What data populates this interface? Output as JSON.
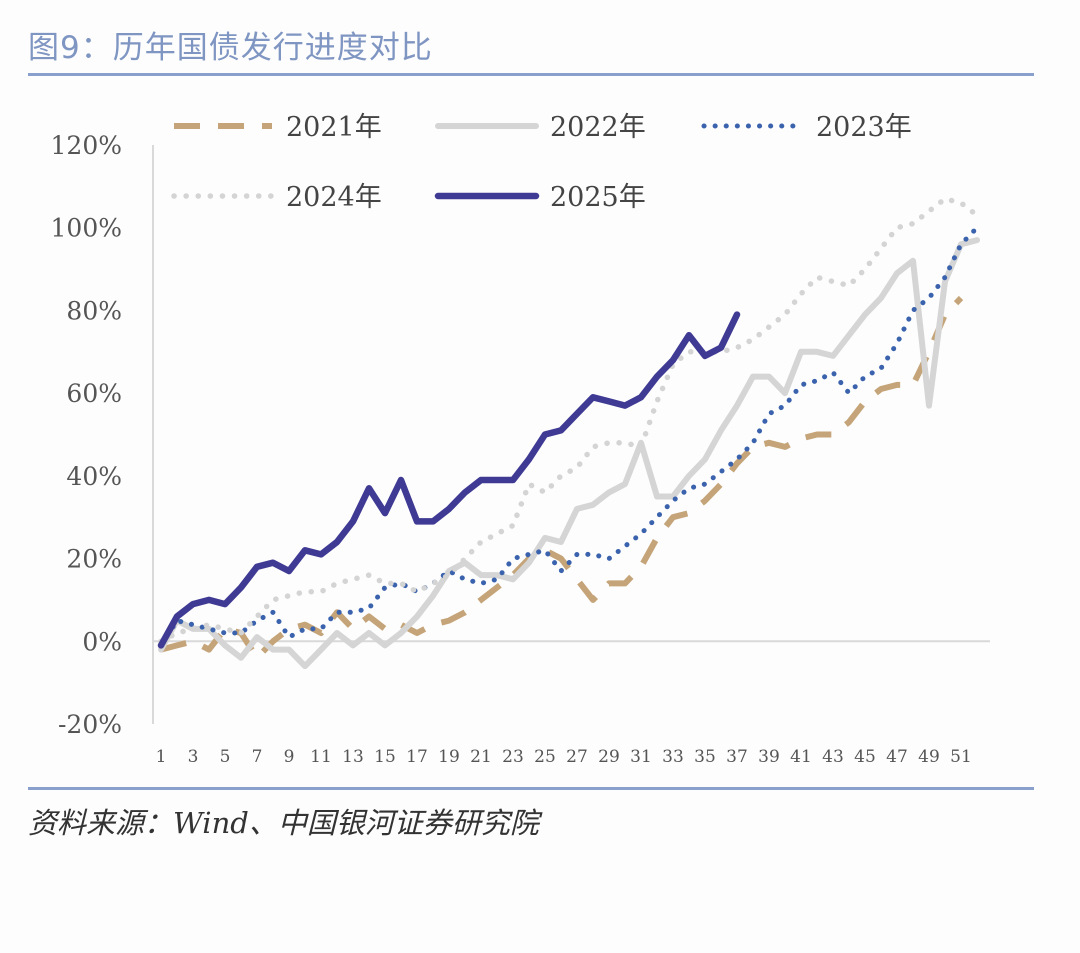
{
  "title": "图9：历年国债发行进度对比",
  "source": "资料来源：Wind、中国银河证券研究院",
  "chart_data": {
    "type": "line",
    "title": "图9：历年国债发行进度对比",
    "xlabel": "",
    "ylabel": "",
    "ylim": [
      -20,
      120
    ],
    "y_ticks": [
      -20,
      0,
      20,
      40,
      60,
      80,
      100,
      120
    ],
    "y_tick_labels": [
      "-20%",
      "0%",
      "20%",
      "40%",
      "60%",
      "80%",
      "100%",
      "120%"
    ],
    "x_range": [
      1,
      52
    ],
    "x_ticks": [
      1,
      3,
      5,
      7,
      9,
      11,
      13,
      15,
      17,
      19,
      21,
      23,
      25,
      27,
      29,
      31,
      33,
      35,
      37,
      39,
      41,
      43,
      45,
      47,
      49,
      51
    ],
    "legend_position": "top",
    "series": [
      {
        "name": "2021年",
        "color": "#c4a478",
        "style": "dashed",
        "x": [
          1,
          2,
          3,
          4,
          5,
          6,
          7,
          8,
          9,
          10,
          11,
          12,
          13,
          14,
          15,
          16,
          17,
          18,
          19,
          20,
          21,
          22,
          23,
          24,
          25,
          26,
          27,
          28,
          29,
          30,
          31,
          32,
          33,
          34,
          35,
          36,
          37,
          38,
          39,
          40,
          41,
          42,
          43,
          44,
          45,
          46,
          47,
          48,
          49,
          50,
          51
        ],
        "values": [
          -2,
          -1,
          0,
          -2,
          3,
          2,
          -4,
          0,
          3,
          4,
          2,
          7,
          3,
          6,
          3,
          4,
          2,
          4,
          5,
          7,
          10,
          13,
          16,
          20,
          22,
          20,
          15,
          10,
          14,
          14,
          18,
          25,
          30,
          31,
          34,
          38,
          43,
          47,
          48,
          47,
          49,
          50,
          50,
          53,
          58,
          61,
          62,
          62,
          70,
          79,
          83
        ]
      },
      {
        "name": "2022年",
        "color": "#d5d5d5",
        "style": "solid",
        "x": [
          1,
          2,
          3,
          4,
          5,
          6,
          7,
          8,
          9,
          10,
          11,
          12,
          13,
          14,
          15,
          16,
          17,
          18,
          19,
          20,
          21,
          22,
          23,
          24,
          25,
          26,
          27,
          28,
          29,
          30,
          31,
          32,
          33,
          34,
          35,
          36,
          37,
          38,
          39,
          40,
          41,
          42,
          43,
          44,
          45,
          46,
          47,
          48,
          49,
          50,
          51,
          52
        ],
        "values": [
          -2,
          5,
          3,
          3,
          -1,
          -4,
          1,
          -2,
          -2,
          -6,
          -2,
          2,
          -1,
          2,
          -1,
          2,
          6,
          11,
          17,
          19,
          16,
          16,
          15,
          19,
          25,
          24,
          32,
          33,
          36,
          38,
          48,
          35,
          35,
          40,
          44,
          51,
          57,
          64,
          64,
          60,
          70,
          70,
          69,
          74,
          79,
          83,
          89,
          92,
          57,
          87,
          96,
          97
        ]
      },
      {
        "name": "2023年",
        "color": "#3b63ad",
        "style": "dotted",
        "x": [
          1,
          2,
          3,
          4,
          5,
          6,
          7,
          8,
          9,
          10,
          11,
          12,
          13,
          14,
          15,
          16,
          17,
          18,
          19,
          20,
          21,
          22,
          23,
          24,
          25,
          26,
          27,
          28,
          29,
          30,
          31,
          32,
          33,
          34,
          35,
          36,
          37,
          38,
          39,
          40,
          41,
          42,
          43,
          44,
          45,
          46,
          47,
          48,
          49,
          50,
          51,
          52
        ],
        "values": [
          -1,
          5,
          4,
          3,
          2,
          2,
          5,
          7,
          1,
          3,
          3,
          7,
          7,
          8,
          13,
          14,
          12,
          14,
          17,
          15,
          14,
          15,
          20,
          21,
          22,
          17,
          21,
          21,
          20,
          23,
          26,
          30,
          34,
          37,
          38,
          41,
          44,
          48,
          55,
          57,
          62,
          63,
          65,
          60,
          64,
          66,
          72,
          80,
          83,
          88,
          96,
          100
        ]
      },
      {
        "name": "2024年",
        "color": "#d4d4d4",
        "style": "dotted",
        "x": [
          1,
          2,
          3,
          4,
          5,
          6,
          7,
          8,
          9,
          10,
          11,
          12,
          13,
          14,
          15,
          16,
          17,
          18,
          19,
          20,
          21,
          22,
          23,
          24,
          25,
          26,
          27,
          28,
          29,
          30,
          31,
          32,
          33,
          34,
          35,
          36,
          37,
          38,
          39,
          40,
          41,
          42,
          43,
          44,
          45,
          46,
          47,
          48,
          49,
          50,
          51,
          52
        ],
        "values": [
          0,
          2,
          3,
          4,
          3,
          2,
          6,
          10,
          11,
          12,
          12,
          14,
          15,
          16,
          14,
          14,
          12,
          14,
          16,
          20,
          24,
          26,
          28,
          38,
          36,
          40,
          42,
          47,
          48,
          48,
          47,
          58,
          67,
          70,
          70,
          70,
          71,
          73,
          76,
          79,
          84,
          88,
          87,
          86,
          90,
          95,
          100,
          101,
          104,
          107,
          106,
          103
        ]
      },
      {
        "name": "2025年",
        "color": "#3f3a93",
        "style": "solid",
        "x": [
          1,
          2,
          3,
          4,
          5,
          6,
          7,
          8,
          9,
          10,
          11,
          12,
          13,
          14,
          15,
          16,
          17,
          18,
          19,
          20,
          21,
          22,
          23,
          24,
          25,
          26,
          27,
          28,
          29,
          30,
          31,
          32,
          33,
          34,
          35,
          36,
          37
        ],
        "values": [
          -1,
          6,
          9,
          10,
          9,
          13,
          18,
          19,
          17,
          22,
          21,
          24,
          29,
          37,
          31,
          39,
          29,
          29,
          32,
          36,
          39,
          39,
          39,
          44,
          50,
          51,
          55,
          59,
          58,
          57,
          59,
          64,
          68,
          74,
          69,
          71,
          79
        ]
      }
    ]
  }
}
